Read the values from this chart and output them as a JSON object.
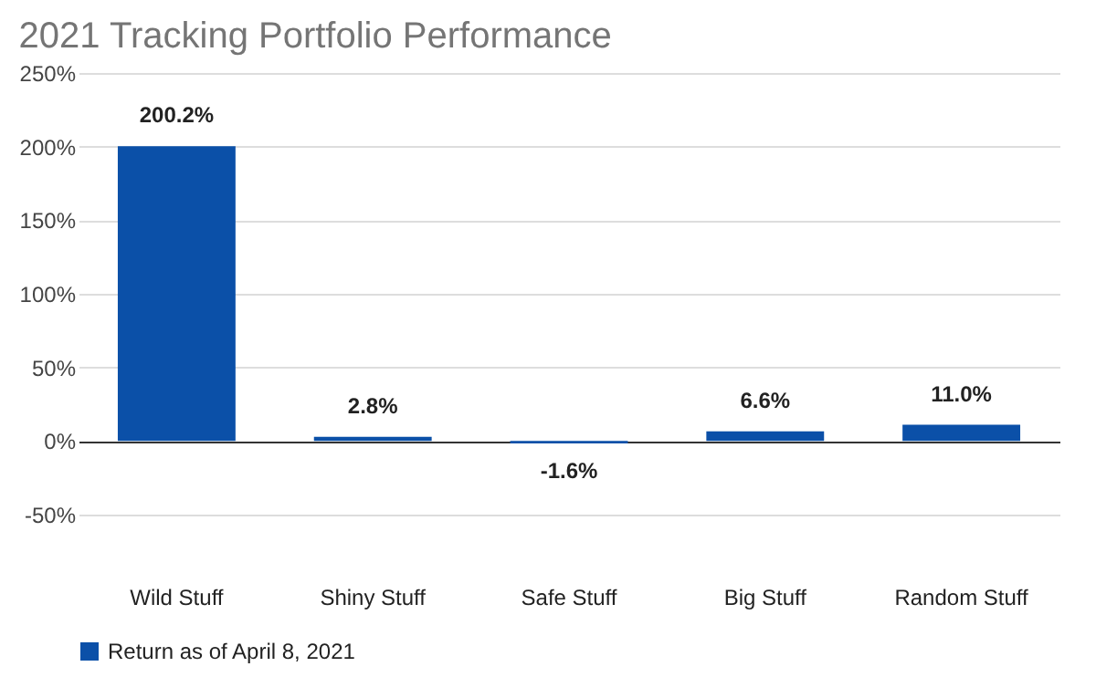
{
  "chart_data": {
    "type": "bar",
    "title": "2021 Tracking Portfolio Performance",
    "categories": [
      "Wild Stuff",
      "Shiny Stuff",
      "Safe Stuff",
      "Big Stuff",
      "Random Stuff"
    ],
    "series": [
      {
        "name": "Return as of April 8, 2021",
        "color": "#0b50a8",
        "values": [
          200.2,
          2.8,
          -1.6,
          6.6,
          11.0
        ],
        "value_labels": [
          "200.2%",
          "2.8%",
          "-1.6%",
          "6.6%",
          "11.0%"
        ]
      }
    ],
    "ylim": [
      -50,
      250
    ],
    "yticks": [
      {
        "value": -50,
        "label": "-50%"
      },
      {
        "value": 0,
        "label": "0%"
      },
      {
        "value": 50,
        "label": "50%"
      },
      {
        "value": 100,
        "label": "100%"
      },
      {
        "value": 150,
        "label": "150%"
      },
      {
        "value": 200,
        "label": "200%"
      },
      {
        "value": 250,
        "label": "250%"
      }
    ],
    "grid": "y",
    "legend": "bottom"
  }
}
